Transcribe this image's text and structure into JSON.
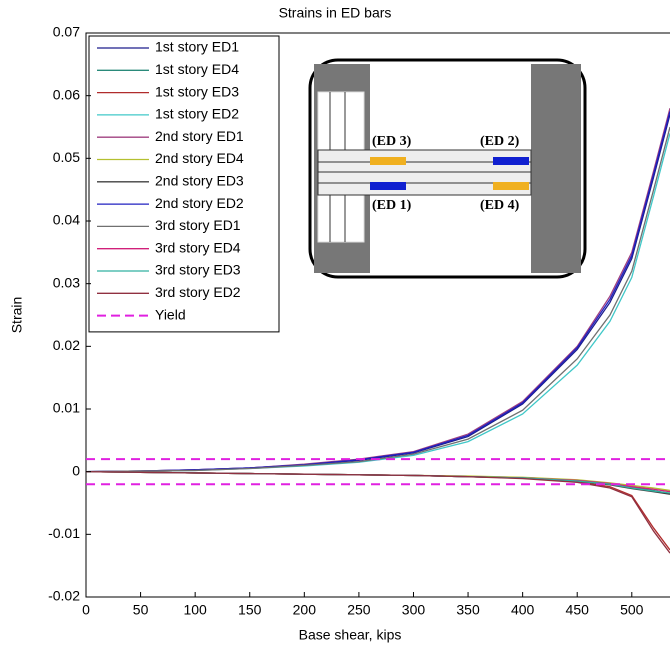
{
  "chart_data": {
    "type": "line",
    "title": "Strains in ED bars",
    "xlabel": "Base shear, kips",
    "ylabel": "Strain",
    "xlim": [
      0,
      535
    ],
    "ylim": [
      -0.02,
      0.07
    ],
    "xticks": [
      0,
      50,
      100,
      150,
      200,
      250,
      300,
      350,
      400,
      450,
      500
    ],
    "yticks": [
      -0.02,
      -0.01,
      0,
      0.01,
      0.02,
      0.03,
      0.04,
      0.05,
      0.06,
      0.07
    ],
    "legend": "upper left",
    "x": [
      0,
      50,
      100,
      150,
      200,
      250,
      300,
      350,
      400,
      450,
      480,
      500,
      520,
      535
    ],
    "series": [
      {
        "name": "1st story ED1",
        "color": "#1c1c8c",
        "values": [
          0,
          0.0001,
          0.0003,
          0.0006,
          0.0011,
          0.0018,
          0.003,
          0.0056,
          0.0108,
          0.0195,
          0.027,
          0.034,
          0.047,
          0.057
        ]
      },
      {
        "name": "1st story ED4",
        "color": "#2a8a7a",
        "values": [
          0,
          -0.0001,
          -0.0002,
          -0.0003,
          -0.0004,
          -0.0005,
          -0.0006,
          -0.0008,
          -0.001,
          -0.0015,
          -0.002,
          -0.0025,
          -0.003,
          -0.0035
        ]
      },
      {
        "name": "1st story ED3",
        "color": "#b02c2c",
        "values": [
          0,
          -0.0001,
          -0.0002,
          -0.0003,
          -0.0004,
          -0.0005,
          -0.0006,
          -0.0008,
          -0.001,
          -0.0016,
          -0.0024,
          -0.0038,
          -0.009,
          -0.0125
        ]
      },
      {
        "name": "1st story ED2",
        "color": "#40c8c8",
        "values": [
          0,
          0.0001,
          0.0002,
          0.0005,
          0.0009,
          0.0015,
          0.0026,
          0.0048,
          0.0092,
          0.017,
          0.024,
          0.031,
          0.044,
          0.054
        ]
      },
      {
        "name": "2nd story ED1",
        "color": "#a04080",
        "values": [
          0,
          0.0001,
          0.0003,
          0.0006,
          0.0012,
          0.002,
          0.0032,
          0.006,
          0.0112,
          0.02,
          0.028,
          0.035,
          0.048,
          0.058
        ]
      },
      {
        "name": "2nd story ED4",
        "color": "#b4c030",
        "values": [
          0,
          -0.0001,
          -0.0002,
          -0.0003,
          -0.0004,
          -0.0005,
          -0.0006,
          -0.0007,
          -0.0009,
          -0.0013,
          -0.0018,
          -0.0022,
          -0.0026,
          -0.003
        ]
      },
      {
        "name": "2nd story ED3",
        "color": "#404040",
        "values": [
          0,
          -0.0001,
          -0.0002,
          -0.0003,
          -0.0004,
          -0.0005,
          -0.0006,
          -0.0008,
          -0.001,
          -0.0015,
          -0.0021,
          -0.0027,
          -0.0032,
          -0.0036
        ]
      },
      {
        "name": "2nd story ED2",
        "color": "#2020c0",
        "values": [
          0,
          0.0001,
          0.0003,
          0.0006,
          0.0011,
          0.0019,
          0.0031,
          0.0058,
          0.011,
          0.0198,
          0.0275,
          0.0345,
          0.0475,
          0.0575
        ]
      },
      {
        "name": "3rd story ED1",
        "color": "#707070",
        "values": [
          0,
          0.0001,
          0.0002,
          0.0005,
          0.001,
          0.0016,
          0.0028,
          0.0052,
          0.0098,
          0.018,
          0.025,
          0.032,
          0.045,
          0.055
        ]
      },
      {
        "name": "3rd story ED4",
        "color": "#d0207a",
        "values": [
          0,
          -0.0001,
          -0.0002,
          -0.0003,
          -0.0004,
          -0.0005,
          -0.0006,
          -0.0008,
          -0.001,
          -0.0014,
          -0.0019,
          -0.0024,
          -0.0028,
          -0.0032
        ]
      },
      {
        "name": "3rd story ED3",
        "color": "#30b0a0",
        "values": [
          0,
          -0.0001,
          -0.0002,
          -0.0003,
          -0.0004,
          -0.0005,
          -0.0006,
          -0.0008,
          -0.001,
          -0.0015,
          -0.002,
          -0.0026,
          -0.0031,
          -0.0034
        ]
      },
      {
        "name": "3rd story ED2",
        "color": "#903040",
        "values": [
          0,
          -0.0001,
          -0.0002,
          -0.0003,
          -0.0004,
          -0.0005,
          -0.0006,
          -0.0008,
          -0.0011,
          -0.0017,
          -0.0026,
          -0.004,
          -0.0095,
          -0.013
        ]
      }
    ],
    "yield": {
      "name": "Yield",
      "color": "#e020e0",
      "values": [
        0.002,
        -0.002
      ]
    },
    "annotations": [
      "(ED 3)",
      "(ED 2)",
      "(ED 1)",
      "(ED 4)"
    ]
  }
}
